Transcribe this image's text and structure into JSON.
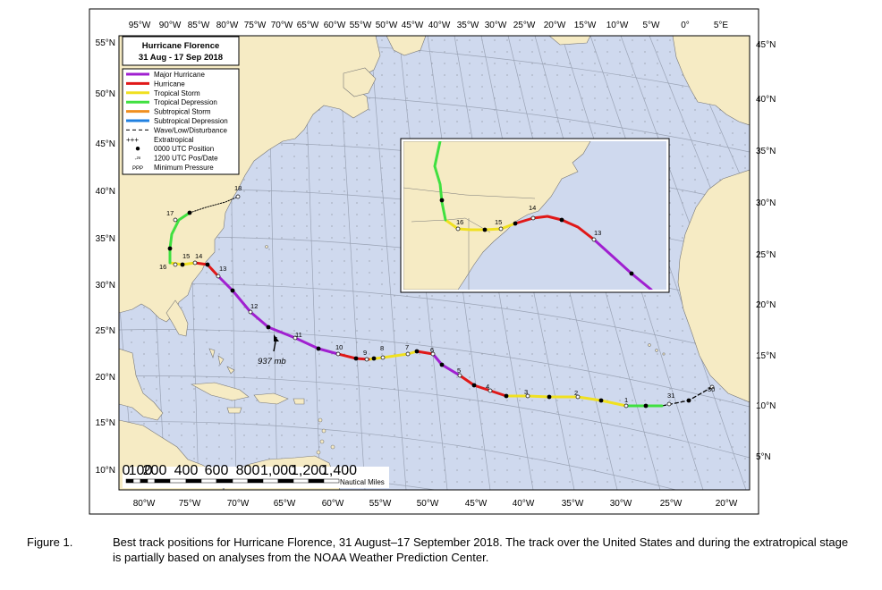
{
  "legend": {
    "title": "Hurricane Florence",
    "subtitle": "31 Aug - 17 Sep 2018",
    "items": [
      {
        "label": "Major Hurricane",
        "color": "#a020d0",
        "style": "line"
      },
      {
        "label": "Hurricane",
        "color": "#e01818",
        "style": "line"
      },
      {
        "label": "Tropical Storm",
        "color": "#f0e020",
        "style": "line"
      },
      {
        "label": "Tropical Depression",
        "color": "#40e040",
        "style": "line"
      },
      {
        "label": "Subtropical Storm",
        "color": "#f09020",
        "style": "line"
      },
      {
        "label": "Subtropical Depression",
        "color": "#2080e0",
        "style": "line"
      },
      {
        "label": "Wave/Low/Disturbance",
        "color": "#000000",
        "style": "dash"
      },
      {
        "label": "Extratropical",
        "color": "#000000",
        "style": "plus"
      },
      {
        "label": "0000 UTC Position",
        "color": "#000000",
        "style": "dot"
      },
      {
        "label": "1200 UTC Pos/Date",
        "color": "#000000",
        "style": "open",
        "glyph": "◦²⁸"
      },
      {
        "label": "Minimum Pressure",
        "color": "#000000",
        "style": "ppp",
        "glyph": "PPP"
      }
    ]
  },
  "top_ticks": [
    "95°W",
    "90°W",
    "85°W",
    "80°W",
    "75°W",
    "70°W",
    "65°W",
    "60°W",
    "55°W",
    "50°W",
    "45°W",
    "40°W",
    "35°W",
    "30°W",
    "25°W",
    "20°W",
    "15°W",
    "10°W",
    "5°W",
    "0°",
    "5°E"
  ],
  "bottom_ticks": [
    "80°W",
    "75°W",
    "70°W",
    "65°W",
    "60°W",
    "55°W",
    "50°W",
    "45°W",
    "40°W",
    "35°W",
    "30°W",
    "25°W",
    "20°W"
  ],
  "left_ticks": [
    "55°N",
    "50°N",
    "45°N",
    "40°N",
    "35°N",
    "30°N",
    "25°N",
    "20°N",
    "15°N",
    "10°N"
  ],
  "right_ticks": [
    "45°N",
    "40°N",
    "35°N",
    "30°N",
    "25°N",
    "20°N",
    "15°N",
    "10°N",
    "5°N"
  ],
  "scale_bar": {
    "labels": [
      "0",
      "100",
      "200",
      "400",
      "600",
      "800",
      "1,000",
      "1,200",
      "1,400"
    ],
    "units": "Nautical Miles"
  },
  "min_pressure_label": "937 mb",
  "track_days": [
    "30",
    "31",
    "1",
    "2",
    "3",
    "4",
    "5",
    "6",
    "7",
    "8",
    "9",
    "10",
    "11",
    "12",
    "13",
    "14",
    "15",
    "16",
    "17",
    "18"
  ],
  "inset_days": [
    "13",
    "14",
    "15",
    "16"
  ],
  "caption": {
    "figure": "Figure 1.",
    "text": "Best track positions for Hurricane Florence, 31 August–17 September 2018. The track over the United States and during the extratropical stage is partially based on analyses from the NOAA Weather Prediction Center."
  },
  "colors": {
    "ocean": "#cfd9ee",
    "land": "#f6ebc4",
    "major": "#a020d0",
    "hurricane": "#e01818",
    "storm": "#f0e020",
    "depression": "#40e040"
  }
}
